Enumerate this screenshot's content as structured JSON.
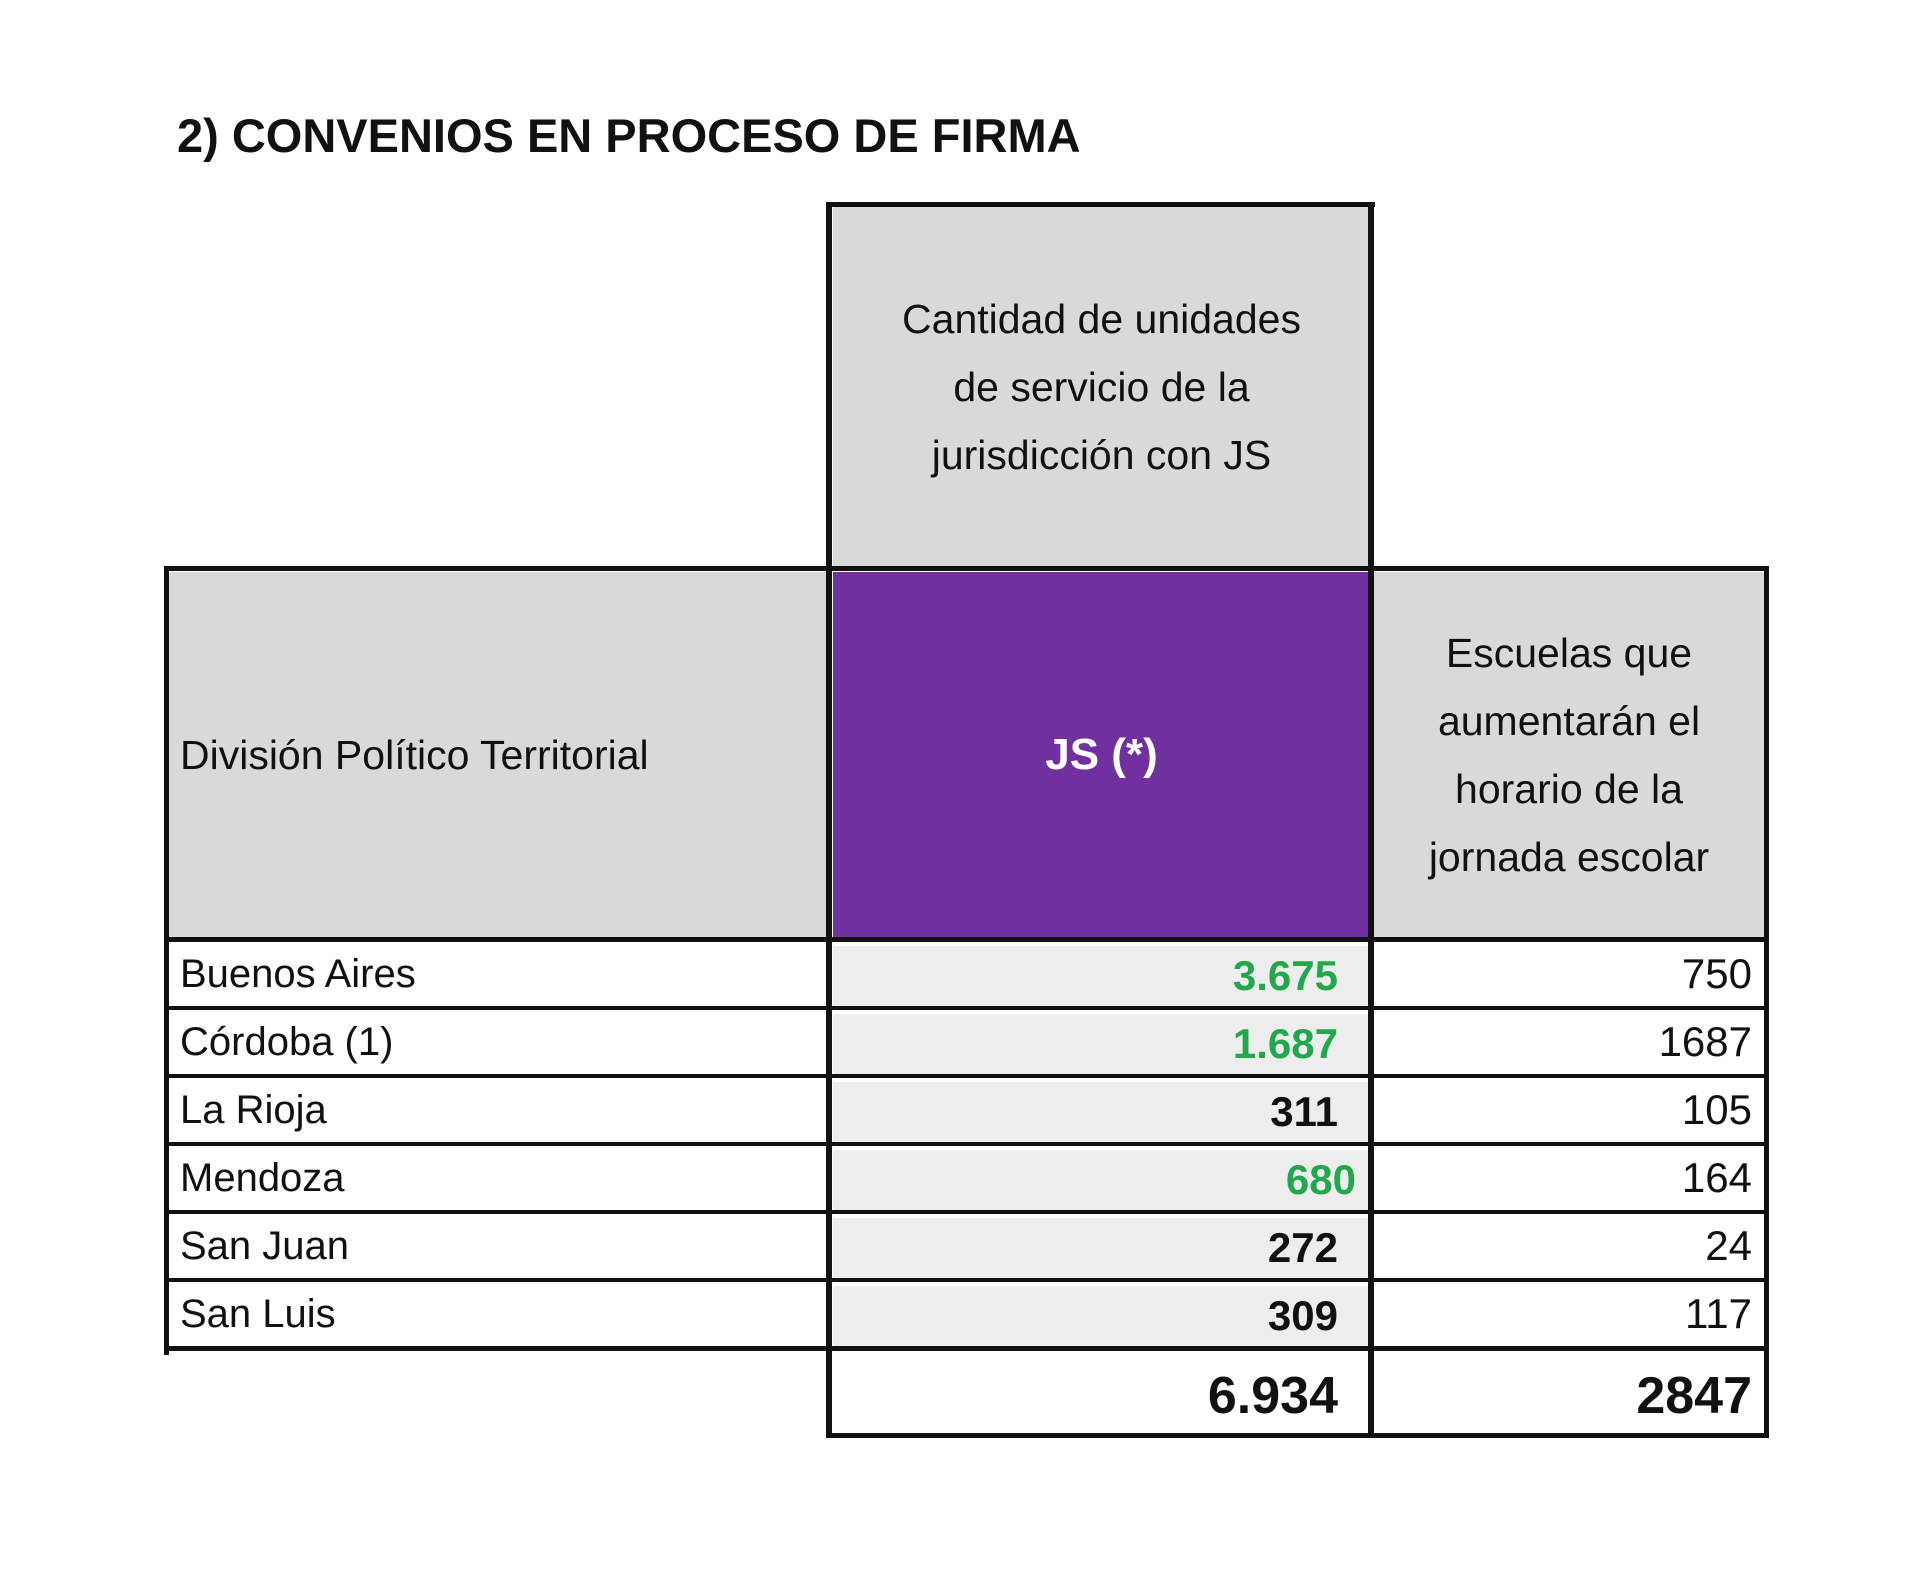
{
  "title": "2) CONVENIOS EN PROCESO DE FIRMA",
  "colors": {
    "header_grey": "#d9d9d9",
    "cell_light": "#ededed",
    "js_purple": "#7030a0",
    "green_value": "#21a84a",
    "text": "#111111"
  },
  "table": {
    "super_header": "Cantidad de unidades de servicio de la jurisdicción con JS",
    "super_header_lines": [
      "Cantidad de unidades",
      "de servicio de la",
      "jurisdicción con JS"
    ],
    "headers": {
      "division": "División Político Territorial",
      "js": "JS (*)",
      "schools": "Escuelas que aumentarán el horario de la jornada escolar",
      "schools_lines": [
        "Escuelas que",
        "aumentarán el",
        "horario de la",
        "jornada escolar"
      ]
    },
    "rows": [
      {
        "division": "Buenos Aires",
        "js": "3.675",
        "js_color": "green",
        "schools": "750"
      },
      {
        "division": "Córdoba (1)",
        "js": "1.687",
        "js_color": "green",
        "schools": "1687"
      },
      {
        "division": "La Rioja",
        "js": "311",
        "js_color": "black",
        "schools": "105"
      },
      {
        "division": "Mendoza",
        "js": "680",
        "js_color": "green",
        "schools": "164"
      },
      {
        "division": "San Juan",
        "js": "272",
        "js_color": "black",
        "schools": "24"
      },
      {
        "division": "San Luis",
        "js": "309",
        "js_color": "black",
        "schools": "117"
      }
    ],
    "totals": {
      "js": "6.934",
      "schools": "2847"
    }
  }
}
